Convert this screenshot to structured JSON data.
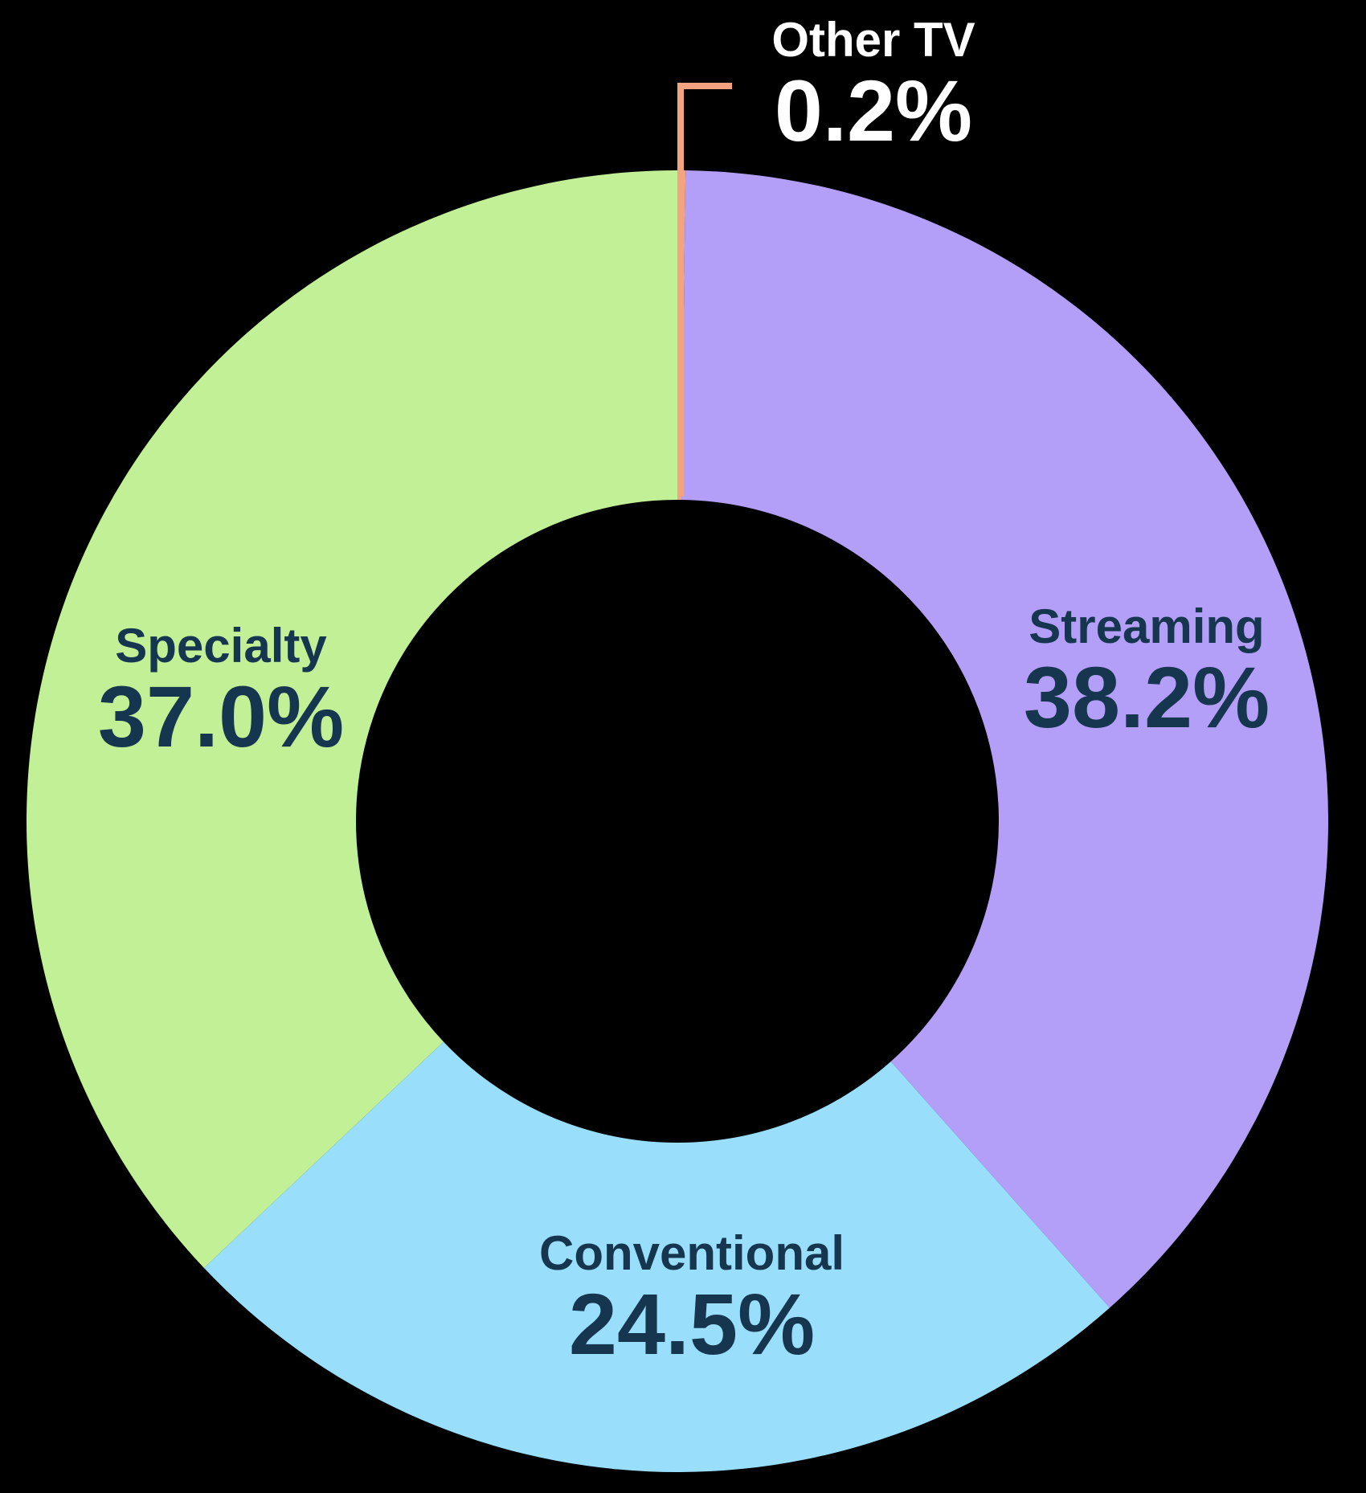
{
  "chart_data": {
    "type": "pie",
    "subtype": "donut",
    "title": "",
    "direction": "clockwise",
    "start_angle_deg": 0,
    "background_color": "#000000",
    "hole_color": "#000000",
    "leader_line_color": "#F4A380",
    "segments": [
      {
        "label": "Other TV",
        "value": 0.2,
        "display": "0.2%",
        "color": "#F4A380",
        "label_color": "#FFFFFF",
        "label_outside": true
      },
      {
        "label": "Streaming",
        "value": 38.2,
        "display": "38.2%",
        "color": "#B49FF8",
        "label_color": "#16354F",
        "label_outside": false
      },
      {
        "label": "Conventional",
        "value": 24.5,
        "display": "24.5%",
        "color": "#99DFFC",
        "label_color": "#16354F",
        "label_outside": false
      },
      {
        "label": "Specialty",
        "value": 37.0,
        "display": "37.0%",
        "color": "#C2F096",
        "label_color": "#16354F",
        "label_outside": false
      }
    ]
  }
}
